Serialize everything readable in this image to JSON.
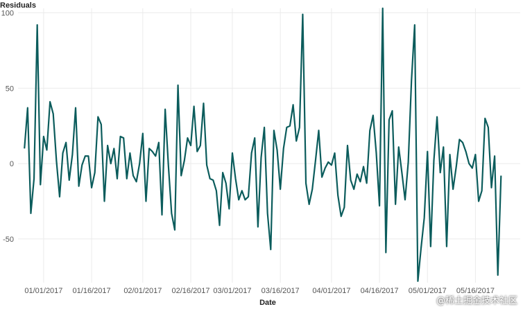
{
  "chart_data": {
    "type": "line",
    "title": "",
    "ylabel": "Residuals",
    "xlabel": "Date",
    "ylim": [
      -79,
      103
    ],
    "xlim": [
      "2016-12-24",
      "2017-05-30"
    ],
    "grid": true,
    "line_color": "#0b5c5c",
    "y_ticks": [
      -50,
      0,
      50,
      100
    ],
    "x_ticks": [
      {
        "date": "2017-01-01",
        "label": "01/01/2017"
      },
      {
        "date": "2017-01-16",
        "label": "01/16/2017"
      },
      {
        "date": "2017-02-01",
        "label": "02/01/2017"
      },
      {
        "date": "2017-02-16",
        "label": "02/16/2017"
      },
      {
        "date": "2017-03-01",
        "label": "03/01/2017"
      },
      {
        "date": "2017-03-16",
        "label": "03/16/2017"
      },
      {
        "date": "2017-04-01",
        "label": "04/01/2017"
      },
      {
        "date": "2017-04-16",
        "label": "04/16/2017"
      },
      {
        "date": "2017-05-01",
        "label": "05/01/2017"
      },
      {
        "date": "2017-05-16",
        "label": "05/16/2017"
      }
    ],
    "series": [
      {
        "x_start": "2016-12-26",
        "values": [
          10,
          37,
          -33,
          -10,
          92,
          -14,
          18,
          9,
          41,
          33,
          2,
          -22,
          7,
          14,
          -11,
          6,
          37,
          -15,
          -1,
          5,
          5,
          -16,
          -6,
          31,
          26,
          -25,
          12,
          0,
          10,
          -10,
          18,
          17,
          -10,
          7,
          -8,
          -12,
          0,
          20,
          -25,
          10,
          8,
          5,
          14,
          -34,
          36,
          -1,
          -33,
          -44,
          52,
          -8,
          2,
          17,
          12,
          38,
          8,
          12,
          40,
          -1,
          -10,
          -11,
          -18,
          -41,
          -6,
          -13,
          -30,
          7,
          -10,
          -24,
          -18,
          -24,
          -22,
          7,
          17,
          -42,
          4,
          24,
          -33,
          -57,
          22,
          9,
          -17,
          10,
          24,
          25,
          39,
          15,
          24,
          99,
          -13,
          -27,
          -17,
          2,
          22,
          -9,
          -3,
          1,
          -1,
          7,
          -21,
          -35,
          -29,
          12,
          -11,
          -17,
          -7,
          -12,
          -2,
          -13,
          22,
          32,
          7,
          -28,
          103,
          -59,
          29,
          35,
          -27,
          11,
          -6,
          -24,
          1,
          55,
          92,
          -78,
          -56,
          -36,
          8,
          -55,
          2,
          31,
          -6,
          11,
          -55,
          6,
          -17,
          -2,
          16,
          14,
          8,
          0,
          -3,
          6,
          -25,
          -18,
          30,
          24,
          -16,
          5,
          -74,
          -8
        ]
      }
    ]
  },
  "watermark": "@稀土掘金技术社区"
}
